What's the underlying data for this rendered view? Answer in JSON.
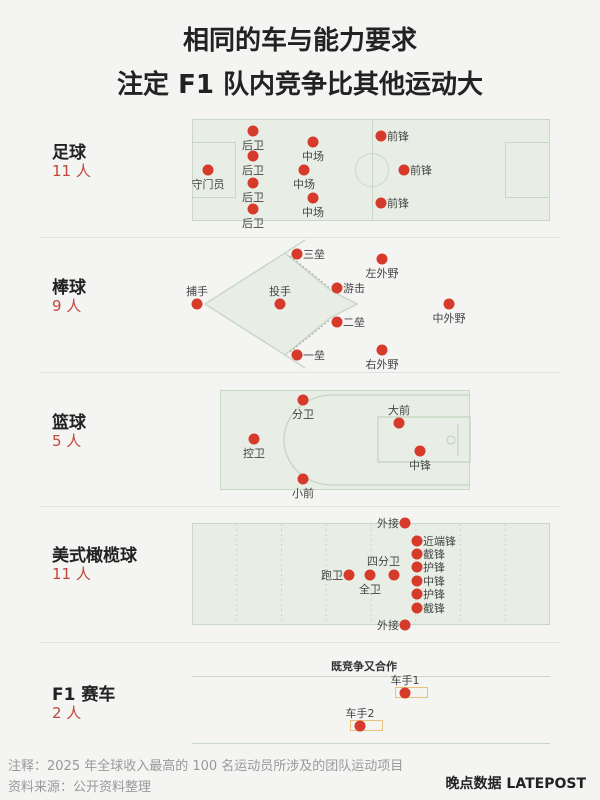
{
  "title": {
    "line1": "相同的车与能力要求",
    "line2": "注定 F1 队内竞争比其他运动大"
  },
  "sports": [
    {
      "name": "足球",
      "count": "11 人",
      "players": [
        "守门员",
        "后卫",
        "后卫",
        "后卫",
        "后卫",
        "中场",
        "中场",
        "中场",
        "前锋",
        "前锋",
        "前锋"
      ]
    },
    {
      "name": "棒球",
      "count": "9 人",
      "players": [
        "捕手",
        "投手",
        "三垒",
        "游击",
        "二垒",
        "一垒",
        "左外野",
        "中外野",
        "右外野"
      ]
    },
    {
      "name": "篮球",
      "count": "5 人",
      "players": [
        "分卫",
        "控卫",
        "小前",
        "大前",
        "中锋"
      ]
    },
    {
      "name": "美式橄榄球",
      "count": "11 人",
      "players": [
        "外接",
        "近端锋",
        "截锋",
        "护锋",
        "中锋",
        "护锋",
        "截锋",
        "外接",
        "四分卫",
        "全卫",
        "跑卫"
      ]
    },
    {
      "name": "F1 赛车",
      "count": "2 人",
      "players": [
        "车手1",
        "车手2"
      ],
      "annotation": "既竞争又合作"
    }
  ],
  "footer": {
    "note": "注释：2025 年全球收入最高的 100 名运动员所涉及的团队运动项目",
    "source": "资料来源：公开资料整理",
    "logo": "晚点数据 LATEPOST"
  },
  "colors": {
    "dot": "#d63a2a",
    "count": "#c0473a",
    "field": "#e8eee6"
  }
}
